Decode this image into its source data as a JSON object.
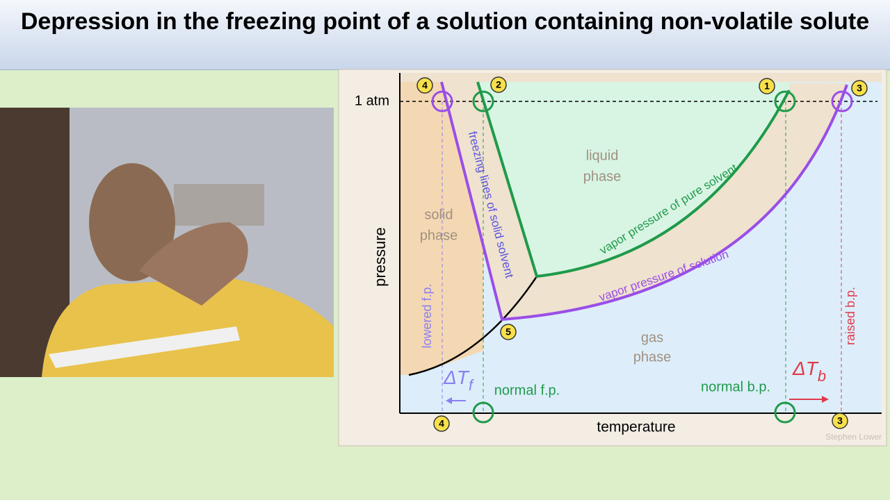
{
  "header": {
    "title": "Depression in the freezing point of a solution containing non-volatile solute"
  },
  "diagram": {
    "axes": {
      "y_label": "pressure",
      "x_label": "temperature",
      "pressure_mark": "1 atm"
    },
    "regions": {
      "solid": [
        "solid",
        "phase"
      ],
      "liquid": [
        "liquid",
        "phase"
      ],
      "gas": [
        "gas",
        "phase"
      ]
    },
    "curves": {
      "freezing": "freezing lines of solid solvent",
      "pure": "vapor pressure of pure solvent",
      "solution": "vapor pressure of solution"
    },
    "annotations": {
      "lowered_fp": "lowered f.p.",
      "raised_bp": "raised b.p.",
      "normal_fp": "normal f.p.",
      "normal_bp": "normal b.p.",
      "delta_tf": {
        "symbol": "ΔT",
        "subscript": "f"
      },
      "delta_tb": {
        "symbol": "ΔT",
        "subscript": "b"
      }
    },
    "markers": [
      "4",
      "2",
      "1",
      "3",
      "5",
      "4",
      "3"
    ],
    "credit": "Stephen Lower"
  }
}
